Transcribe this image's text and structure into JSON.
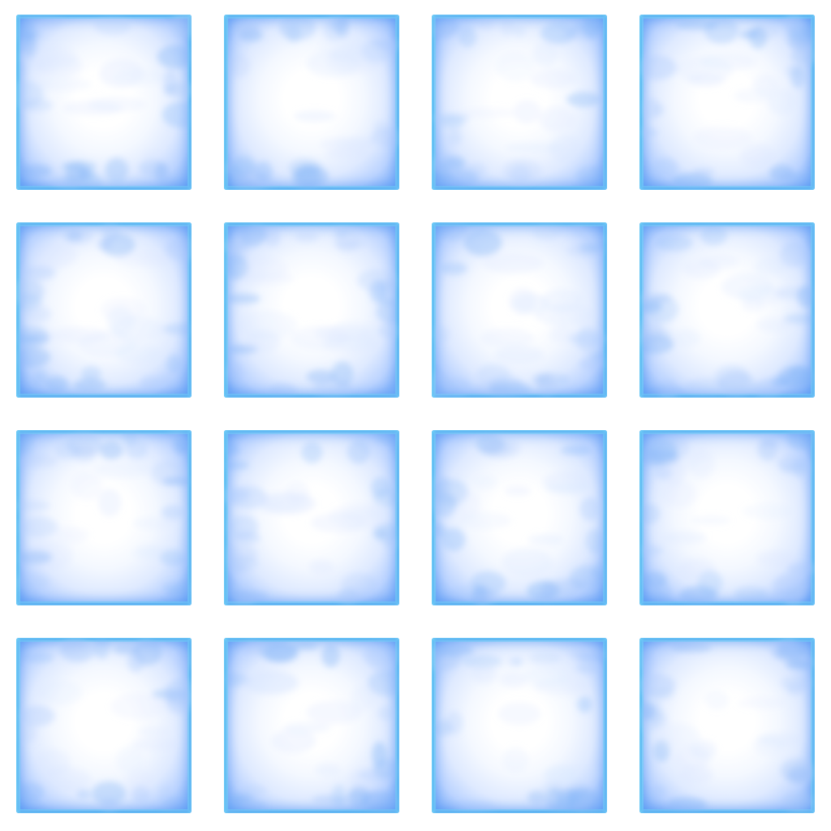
{
  "sheet": {
    "columns": 4,
    "rows": 4,
    "tile_style": "frosted-ice-block",
    "colors": {
      "background": "#ffffff",
      "tile_center": "#ffffff",
      "tile_mid": "#dfeaff",
      "tile_edge": "#6aa7f5",
      "rim_highlight": "#78e6fa"
    }
  },
  "tiles": [
    {
      "variant": 1
    },
    {
      "variant": 2
    },
    {
      "variant": 3
    },
    {
      "variant": 4
    },
    {
      "variant": 5
    },
    {
      "variant": 6
    },
    {
      "variant": 7
    },
    {
      "variant": 8
    },
    {
      "variant": 9
    },
    {
      "variant": 10
    },
    {
      "variant": 11
    },
    {
      "variant": 12
    },
    {
      "variant": 13
    },
    {
      "variant": 14
    },
    {
      "variant": 15
    },
    {
      "variant": 16
    }
  ]
}
